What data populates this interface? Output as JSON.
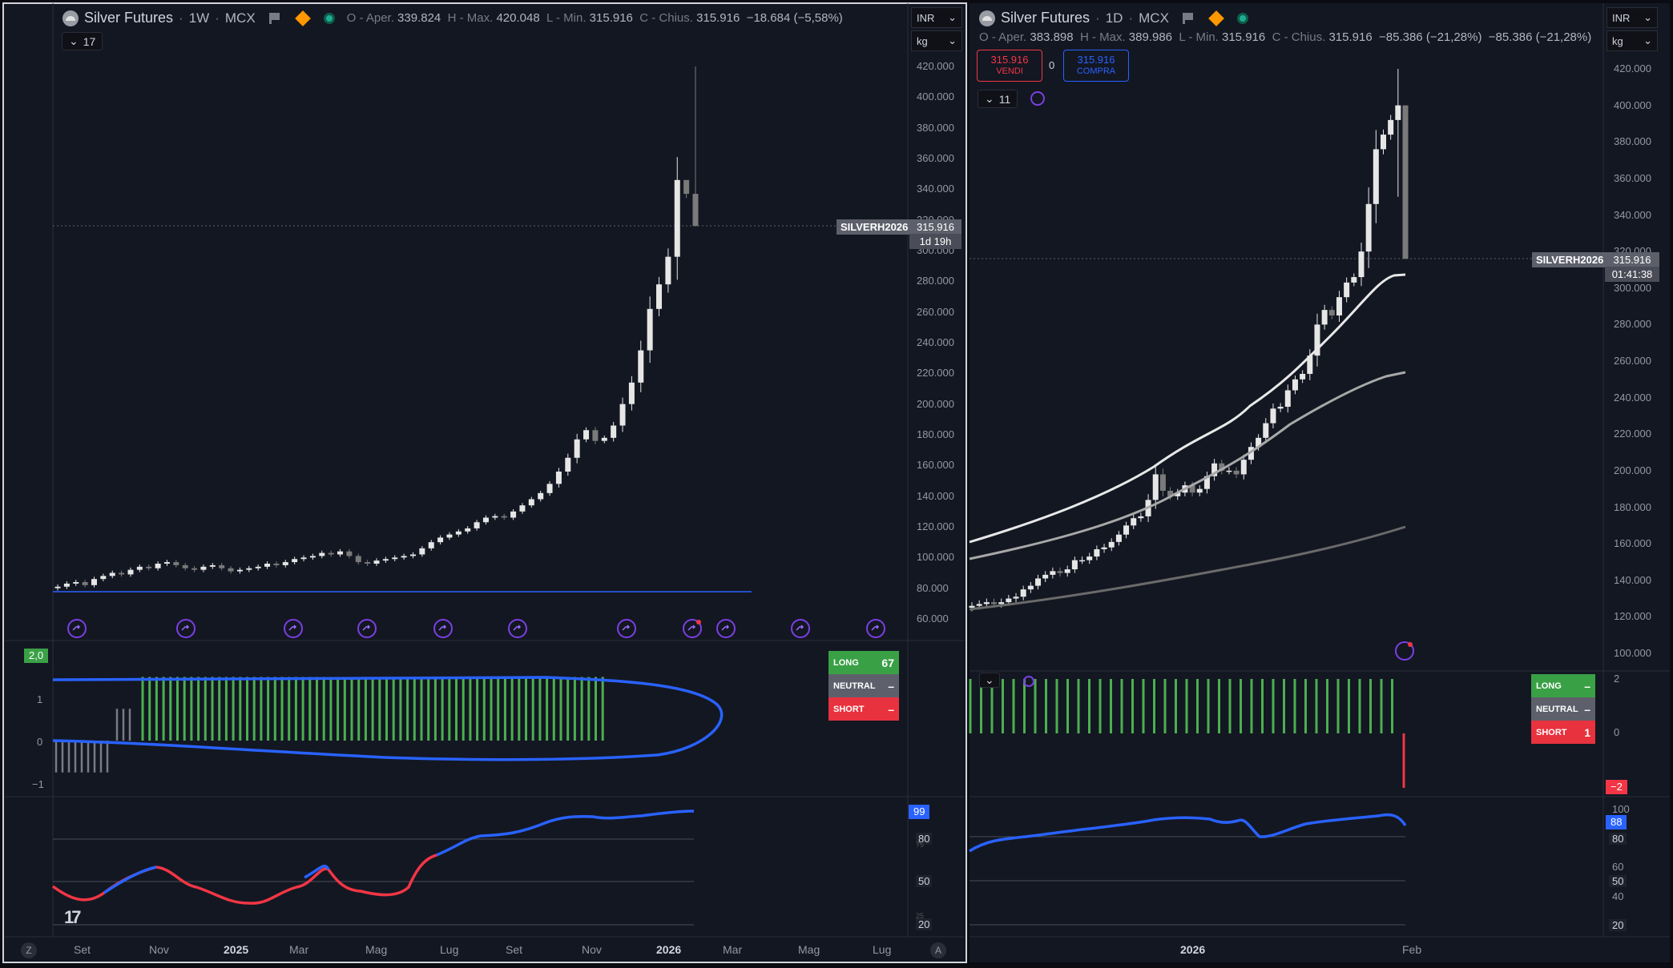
{
  "colors": {
    "background": "#131722",
    "accent_blue": "#2962ff",
    "long_green": "#4caf50",
    "short_red": "#f23645",
    "neutral_grey": "#787b86",
    "candle_up": "#e6e6e6",
    "candle_down": "#7a7a7a"
  },
  "left": {
    "symbol": "Silver Futures",
    "interval": "1W",
    "exchange": "MCX",
    "ohlc": {
      "o_label": "O - Aper.",
      "o": "339.824",
      "h_label": "H - Max.",
      "h": "420.048",
      "l_label": "L - Min.",
      "l": "315.916",
      "c_label": "C - Chius.",
      "c": "315.916",
      "change": "−18.684 (−5,58%)"
    },
    "currency": "INR",
    "unit": "kg",
    "collapse_count": "17",
    "price_axis": [
      "420.000",
      "400.000",
      "380.000",
      "360.000",
      "340.000",
      "320.000",
      "300.000",
      "280.000",
      "260.000",
      "240.000",
      "220.000",
      "200.000",
      "180.000",
      "160.000",
      "140.000",
      "120.000",
      "100.000",
      "80.000",
      "60.000"
    ],
    "last_tag": {
      "symbol": "SILVERH2026",
      "price": "315.916",
      "countdown": "1d 19h"
    },
    "osc1": {
      "badge": "2,0",
      "axis": [
        "1",
        "0",
        "−1"
      ]
    },
    "signals": {
      "long_label": "LONG",
      "long_value": "67",
      "neutral_label": "NEUTRAL",
      "neutral_value": "–",
      "short_label": "SHORT",
      "short_value": "–"
    },
    "osc2": {
      "badge": "99",
      "axis": [
        "80",
        "50",
        "20"
      ],
      "extra_ticks": [
        "75",
        "25"
      ]
    },
    "time_axis": [
      "Set",
      "Nov",
      "2025",
      "Mar",
      "Mag",
      "Lug",
      "Set",
      "Nov",
      "2026",
      "Mar",
      "Mag",
      "Lug"
    ],
    "time_bold": [
      "2025",
      "2026"
    ],
    "footer_left": "Z",
    "footer_right": "A"
  },
  "right": {
    "symbol": "Silver Futures",
    "interval": "1D",
    "exchange": "MCX",
    "ohlc": {
      "o_label": "O - Aper.",
      "o": "383.898",
      "h_label": "H - Max.",
      "h": "389.986",
      "l_label": "L - Min.",
      "l": "315.916",
      "c_label": "C - Chius.",
      "c": "315.916",
      "change": "−85.386 (−21,28%)",
      "change2": "−85.386 (−21,28%)"
    },
    "currency": "INR",
    "unit": "kg",
    "sell": {
      "price": "315.916",
      "label": "VENDI"
    },
    "spread": "0",
    "buy": {
      "price": "315.916",
      "label": "COMPRA"
    },
    "collapse_count": "11",
    "price_axis": [
      "420.000",
      "400.000",
      "380.000",
      "360.000",
      "340.000",
      "320.000",
      "300.000",
      "280.000",
      "260.000",
      "240.000",
      "220.000",
      "200.000",
      "180.000",
      "160.000",
      "140.000",
      "120.000",
      "100.000"
    ],
    "last_tag": {
      "symbol": "SILVERH2026",
      "price": "315.916",
      "countdown": "01:41:38"
    },
    "osc1": {
      "axis": [
        "2",
        "0"
      ],
      "badge": "−2"
    },
    "signals": {
      "long_label": "LONG",
      "long_value": "–",
      "neutral_label": "NEUTRAL",
      "neutral_value": "–",
      "short_label": "SHORT",
      "short_value": "1"
    },
    "osc2": {
      "badge": "88",
      "axis": [
        "100",
        "80",
        "60",
        "50",
        "40",
        "20"
      ]
    },
    "time_axis": [
      "2026",
      "Feb"
    ],
    "time_bold": [
      "2026"
    ]
  }
}
